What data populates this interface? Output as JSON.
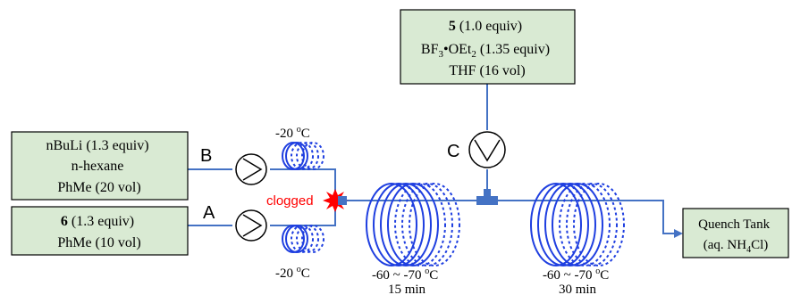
{
  "reagent_5_box": {
    "compound_bold": "5",
    "compound_rest": " (1.0 equiv)",
    "lewis_acid_a": "BF",
    "lewis_acid_sub1": "3",
    "lewis_acid_b": "•OEt",
    "lewis_acid_sub2": "2",
    "lewis_acid_rest": " (1.35 equiv)",
    "solvent": "THF (16 vol)"
  },
  "nbuli_box": {
    "line1": "nBuLi (1.3 equiv)",
    "line2": "n-hexane",
    "line3": "PhMe (20 vol)"
  },
  "reagent_6_box": {
    "compound_bold": "6",
    "compound_rest": " (1.3 equiv)",
    "line2": "PhMe (10 vol)"
  },
  "quench_box": {
    "line1": "Quench Tank",
    "line2_a": "(aq. NH",
    "line2_sub": "4",
    "line2_b": "Cl)"
  },
  "pump_labels": {
    "a": "A",
    "b": "B",
    "c": "C"
  },
  "clogged_label": "clogged",
  "precool_top_temp": {
    "value": "-20 ",
    "sup": "o",
    "unit": "C"
  },
  "precool_bottom_temp": {
    "value": "-20 ",
    "sup": "o",
    "unit": "C"
  },
  "reactor_1": {
    "temp_value": "-60 ~ -70 ",
    "temp_sup": "o",
    "temp_unit": "C",
    "time": "15 min"
  },
  "reactor_2": {
    "temp_value": "-60 ~ -70 ",
    "temp_sup": "o",
    "temp_unit": "C",
    "time": "30 min"
  },
  "colors": {
    "box_fill": "#d9ead3",
    "line": "#4472c4",
    "coil": "#1f3fe0",
    "mixer": "#4472c4",
    "clog": "#ff0000"
  }
}
